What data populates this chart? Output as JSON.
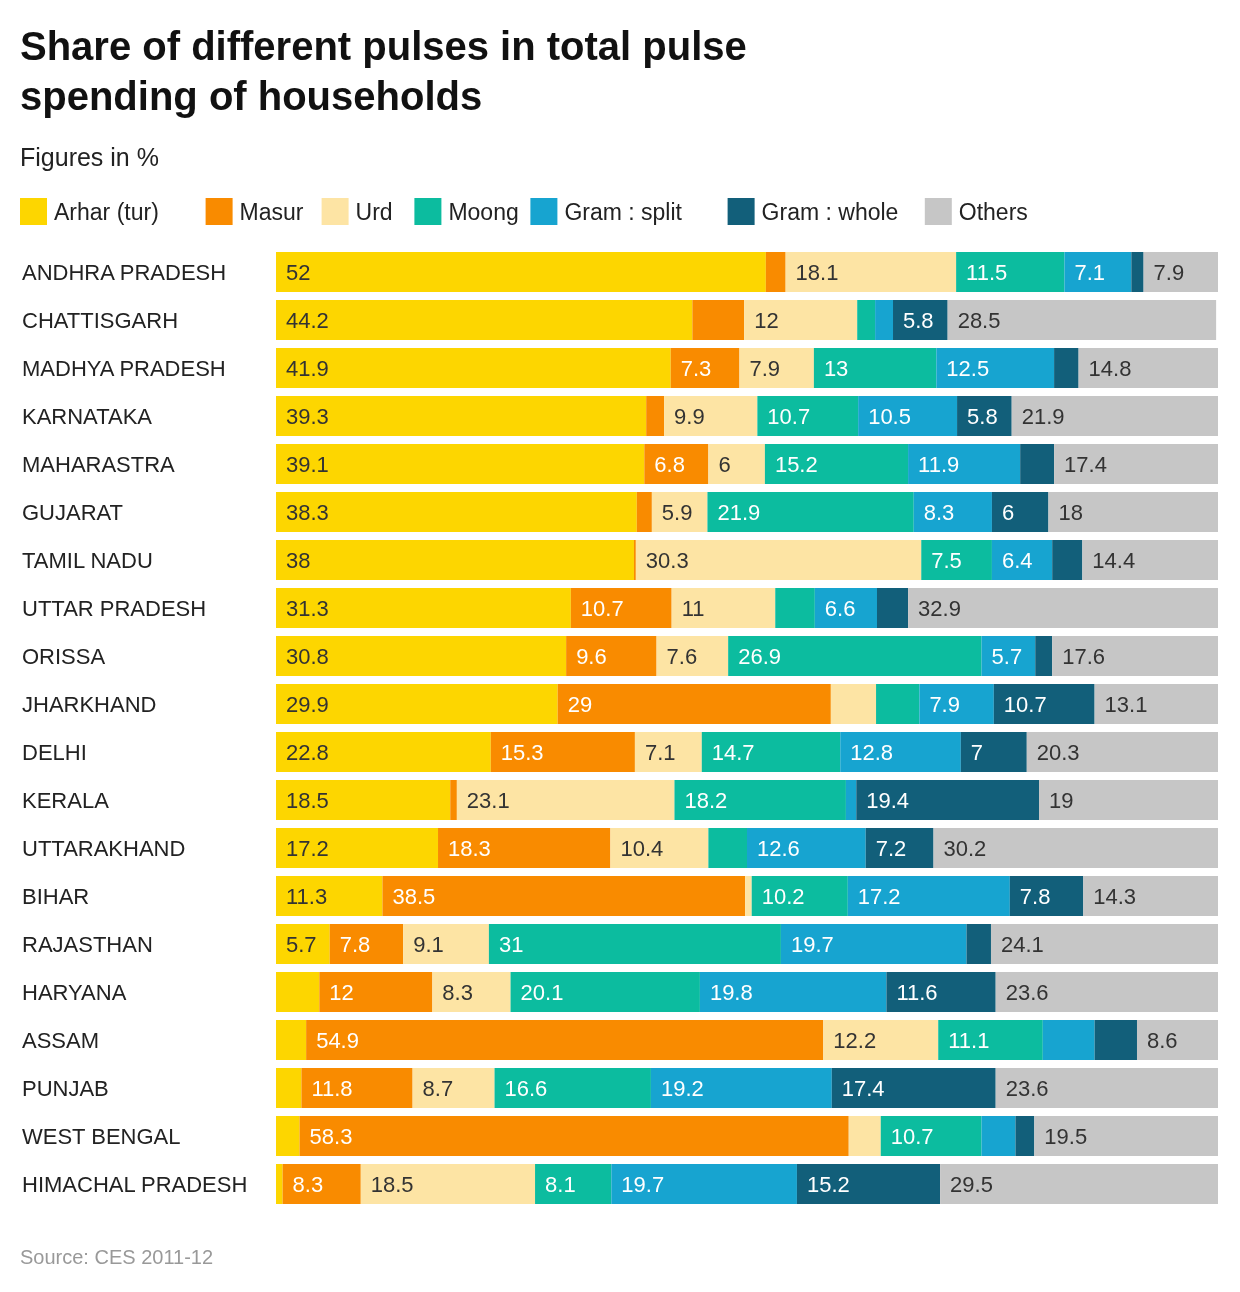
{
  "chart_data": {
    "type": "bar",
    "orientation": "horizontal",
    "stacked": true,
    "title": "Share of different pulses in total pulse spending of households",
    "subtitle": "Figures in %",
    "legend": "top",
    "tick_labels": "y",
    "xlim": [
      0,
      100
    ],
    "annotations": [
      "Source: CES 2011-12"
    ],
    "categories": [
      "ANDHRA PRADESH",
      "CHATTISGARH",
      "MADHYA PRADESH",
      "KARNATAKA",
      "MAHARASTRA",
      "GUJARAT",
      "TAMIL NADU",
      "UTTAR PRADESH",
      "ORISSA",
      "JHARKHAND",
      "DELHI",
      "KERALA",
      "UTTARAKHAND",
      "BIHAR",
      "RAJASTHAN",
      "HARYANA",
      "ASSAM",
      "PUNJAB",
      "WEST BENGAL",
      "HIMACHAL PRADESH"
    ],
    "series": [
      {
        "name": "Arhar (tur)",
        "color": "#fdd600",
        "values": [
          52,
          44.2,
          41.9,
          39.3,
          39.1,
          38.3,
          38,
          31.3,
          30.8,
          29.9,
          22.8,
          18.5,
          17.2,
          11.3,
          5.7,
          4.6,
          3.2,
          2.7,
          2.5,
          0.7
        ],
        "value_labels": [
          "52",
          "44.2",
          "41.9",
          "39.3",
          "39.1",
          "38.3",
          "38",
          "31.3",
          "30.8",
          "29.9",
          "22.8",
          "18.5",
          "17.2",
          "11.3",
          "5.7",
          null,
          null,
          null,
          null,
          null
        ]
      },
      {
        "name": "Masur",
        "color": "#f98b00",
        "values": [
          2.1,
          5.5,
          7.3,
          1.9,
          6.8,
          1.6,
          0.2,
          10.7,
          9.6,
          29,
          15.3,
          0.7,
          18.3,
          38.5,
          7.8,
          12,
          54.9,
          11.8,
          58.3,
          8.3
        ],
        "value_labels": [
          null,
          null,
          "7.3",
          null,
          "6.8",
          null,
          null,
          "10.7",
          "9.6",
          "29",
          "15.3",
          null,
          "18.3",
          "38.5",
          "7.8",
          "12",
          "54.9",
          "11.8",
          "58.3",
          "8.3"
        ]
      },
      {
        "name": "Urd",
        "color": "#fde4a4",
        "values": [
          18.1,
          12,
          7.9,
          9.9,
          6,
          5.9,
          30.3,
          11,
          7.6,
          4.8,
          7.1,
          23.1,
          10.4,
          0.7,
          9.1,
          8.3,
          12.2,
          8.7,
          3.4,
          18.5
        ],
        "value_labels": [
          "18.1",
          "12",
          "7.9",
          "9.9",
          "6",
          "5.9",
          "30.3",
          "11",
          "7.6",
          null,
          "7.1",
          "23.1",
          "10.4",
          null,
          "9.1",
          "8.3",
          "12.2",
          "8.7",
          null,
          "18.5"
        ]
      },
      {
        "name": "Moong",
        "color": "#0cbc9f",
        "values": [
          11.5,
          1.9,
          13,
          10.7,
          15.2,
          21.9,
          7.5,
          4.2,
          26.9,
          4.6,
          14.7,
          18.2,
          4.1,
          10.2,
          31,
          20.1,
          11.1,
          16.6,
          10.7,
          8.1
        ],
        "value_labels": [
          "11.5",
          null,
          "13",
          "10.7",
          "15.2",
          "21.9",
          "7.5",
          null,
          "26.9",
          null,
          "14.7",
          "18.2",
          null,
          "10.2",
          "31",
          "20.1",
          "11.1",
          "16.6",
          "10.7",
          "8.1"
        ]
      },
      {
        "name": "Gram : split",
        "color": "#17a4d0",
        "values": [
          7.1,
          1.9,
          12.5,
          10.5,
          11.9,
          8.3,
          6.4,
          6.6,
          5.7,
          7.9,
          12.8,
          1.1,
          12.6,
          17.2,
          19.7,
          19.8,
          5.5,
          19.2,
          3.6,
          19.7
        ],
        "value_labels": [
          "7.1",
          null,
          "12.5",
          "10.5",
          "11.9",
          "8.3",
          "6.4",
          "6.6",
          "5.7",
          "7.9",
          "12.8",
          null,
          "12.6",
          "17.2",
          "19.7",
          "19.8",
          null,
          "19.2",
          null,
          "19.7"
        ]
      },
      {
        "name": "Gram : whole",
        "color": "#125f7a",
        "values": [
          1.3,
          5.8,
          2.6,
          5.8,
          3.6,
          6,
          3.2,
          3.3,
          1.8,
          10.7,
          7,
          19.4,
          7.2,
          7.8,
          2.6,
          11.6,
          4.5,
          17.4,
          2,
          15.2
        ],
        "value_labels": [
          null,
          "5.8",
          null,
          "5.8",
          null,
          "6",
          null,
          null,
          null,
          "10.7",
          "7",
          "19.4",
          "7.2",
          "7.8",
          null,
          "11.6",
          null,
          "17.4",
          null,
          "15.2"
        ]
      },
      {
        "name": "Others",
        "color": "#c6c6c6",
        "values": [
          7.9,
          28.5,
          14.8,
          21.9,
          17.4,
          18,
          14.4,
          32.9,
          17.6,
          13.1,
          20.3,
          19,
          30.2,
          14.3,
          24.1,
          23.6,
          8.6,
          23.6,
          19.5,
          29.5
        ],
        "value_labels": [
          "7.9",
          "28.5",
          "14.8",
          "21.9",
          "17.4",
          "18",
          "14.4",
          "32.9",
          "17.6",
          "13.1",
          "20.3",
          "19",
          "30.2",
          "14.3",
          "24.1",
          "23.6",
          "8.6",
          "23.6",
          "19.5",
          "29.5"
        ]
      }
    ]
  }
}
